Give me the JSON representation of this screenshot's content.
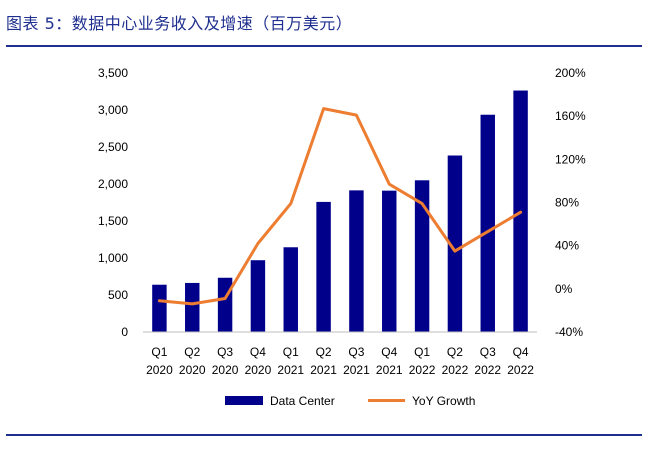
{
  "figure": {
    "title": "图表 5：数据中心业务收入及增速（百万美元）"
  },
  "colors": {
    "title": "#1f2f8f",
    "rule": "#1f2f8f",
    "bar": "#00008b",
    "line": "#ed7d31",
    "axis": "#bfbfbf"
  },
  "chart_data": {
    "type": "bar",
    "title": "",
    "categories": [
      [
        "Q1",
        "2020"
      ],
      [
        "Q2",
        "2020"
      ],
      [
        "Q3",
        "2020"
      ],
      [
        "Q4",
        "2020"
      ],
      [
        "Q1",
        "2021"
      ],
      [
        "Q2",
        "2021"
      ],
      [
        "Q3",
        "2021"
      ],
      [
        "Q4",
        "2021"
      ],
      [
        "Q1",
        "2022"
      ],
      [
        "Q2",
        "2022"
      ],
      [
        "Q3",
        "2022"
      ],
      [
        "Q4",
        "2022"
      ]
    ],
    "series": [
      {
        "name": "Data Center",
        "type": "bar",
        "axis": "left",
        "values": [
          639,
          663,
          733,
          970,
          1145,
          1758,
          1914,
          1910,
          2050,
          2385,
          2936,
          3263
        ]
      },
      {
        "name": "YoY Growth",
        "type": "line",
        "axis": "right",
        "values": [
          -11,
          -14,
          -9,
          42,
          79,
          167,
          161,
          97,
          79,
          35,
          53,
          71
        ]
      }
    ],
    "y_left": {
      "min": 0,
      "max": 3500,
      "ticks": [
        0,
        500,
        1000,
        1500,
        2000,
        2500,
        3000,
        3500
      ],
      "tick_labels": [
        "0",
        "500",
        "1,000",
        "1,500",
        "2,000",
        "2,500",
        "3,000",
        "3,500"
      ]
    },
    "y_right": {
      "min": -40,
      "max": 200,
      "ticks": [
        -40,
        0,
        40,
        80,
        120,
        160,
        200
      ],
      "tick_labels": [
        "-40%",
        "0%",
        "40%",
        "80%",
        "120%",
        "160%",
        "200%"
      ]
    },
    "grid": false,
    "legend_position": "bottom"
  }
}
